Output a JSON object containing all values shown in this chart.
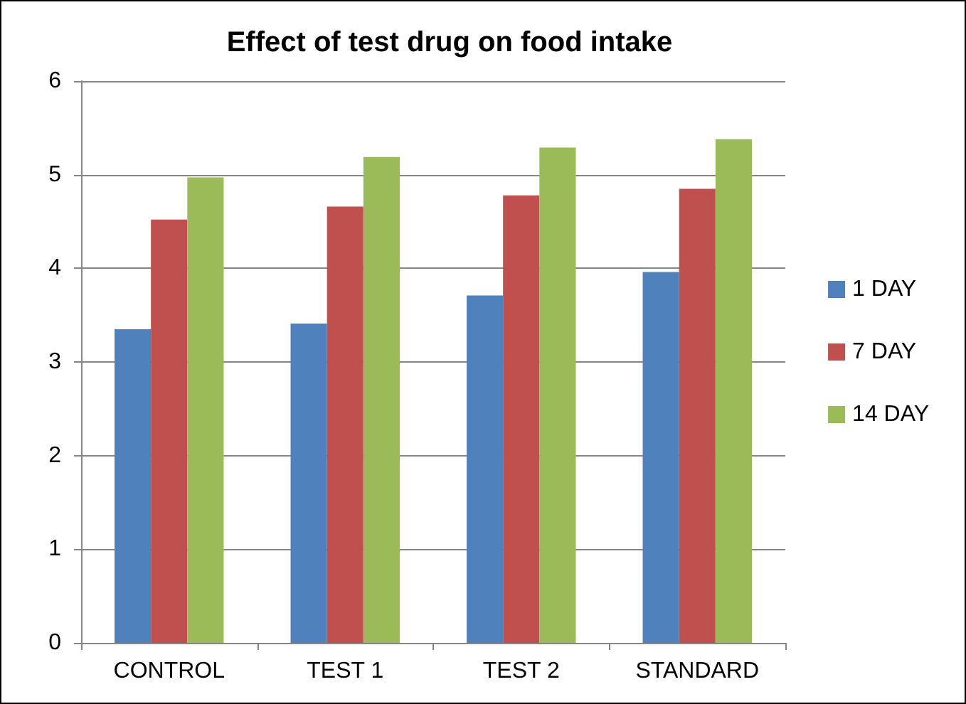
{
  "chart_data": {
    "type": "bar",
    "title": "Effect of test drug on food intake",
    "categories": [
      "CONTROL",
      "TEST 1",
      "TEST 2",
      "STANDARD"
    ],
    "series": [
      {
        "name": "1 DAY",
        "color": "#4f81bd",
        "values": [
          3.35,
          3.41,
          3.71,
          3.96
        ]
      },
      {
        "name": "7 DAY",
        "color": "#c0504d",
        "values": [
          4.52,
          4.66,
          4.78,
          4.85
        ]
      },
      {
        "name": "14 DAY",
        "color": "#9bbb59",
        "values": [
          4.97,
          5.19,
          5.29,
          5.38
        ]
      }
    ],
    "ylim": [
      0,
      6
    ],
    "yticks": [
      0,
      1,
      2,
      3,
      4,
      5,
      6
    ],
    "grid": "y",
    "legend": "right"
  }
}
